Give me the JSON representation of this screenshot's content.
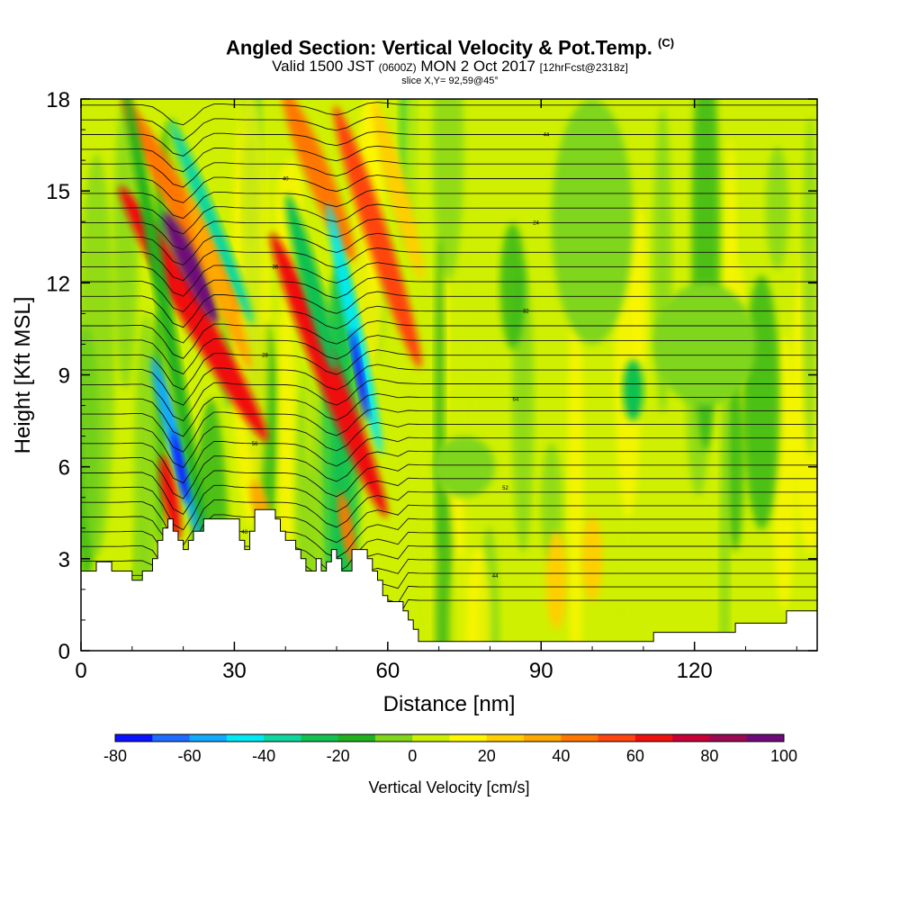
{
  "header": {
    "title_main": "Angled Section: Vertical Velocity & Pot.Temp.",
    "title_unit": "(C)",
    "valid_a": "Valid 1500 JST",
    "valid_b": "(0600Z)",
    "valid_c": "MON 2 Oct 2017",
    "valid_d": "[12hrFcst@2318z]",
    "slice": "slice X,Y= 92,59@45°"
  },
  "chart_data": {
    "type": "heatmap",
    "xlabel": "Distance [nm]",
    "ylabel": "Height [Kft MSL]",
    "xlim": [
      0,
      144
    ],
    "ylim": [
      0,
      18
    ],
    "xticks": [
      0,
      30,
      60,
      90,
      120
    ],
    "yticks": [
      0,
      3,
      6,
      9,
      12,
      15,
      18
    ],
    "colorbar": {
      "title": "Vertical Velocity [cm/s]",
      "bounds": [
        -80,
        -70,
        -60,
        -50,
        -40,
        -30,
        -20,
        -10,
        0,
        10,
        20,
        30,
        40,
        50,
        60,
        70,
        80,
        90,
        100
      ],
      "labels": [
        -80,
        -60,
        -40,
        -20,
        0,
        20,
        40,
        60,
        80,
        100
      ],
      "colors": [
        "#0a12ff",
        "#1f6cff",
        "#11aaff",
        "#00eaf5",
        "#10d7a0",
        "#11c151",
        "#20b11e",
        "#7fd61a",
        "#cff000",
        "#fff600",
        "#ffcf00",
        "#ffa800",
        "#ff7700",
        "#ff4510",
        "#f01010",
        "#c80035",
        "#9c0a55",
        "#6f0a7a"
      ]
    },
    "terrain": [
      [
        0,
        2.6
      ],
      [
        3,
        2.6
      ],
      [
        3,
        2.9
      ],
      [
        6,
        2.9
      ],
      [
        6,
        2.6
      ],
      [
        10,
        2.6
      ],
      [
        10,
        2.3
      ],
      [
        12,
        2.3
      ],
      [
        12,
        2.6
      ],
      [
        14,
        2.6
      ],
      [
        14,
        3.0
      ],
      [
        15,
        3.0
      ],
      [
        15,
        3.6
      ],
      [
        16,
        3.6
      ],
      [
        16,
        4.0
      ],
      [
        17,
        4.0
      ],
      [
        17,
        4.3
      ],
      [
        18,
        4.3
      ],
      [
        18,
        3.9
      ],
      [
        19,
        3.9
      ],
      [
        19,
        3.6
      ],
      [
        20,
        3.6
      ],
      [
        20,
        3.3
      ],
      [
        21,
        3.3
      ],
      [
        21,
        3.6
      ],
      [
        22,
        3.6
      ],
      [
        22,
        3.9
      ],
      [
        24,
        3.9
      ],
      [
        24,
        4.3
      ],
      [
        31,
        4.3
      ],
      [
        31,
        3.6
      ],
      [
        32,
        3.6
      ],
      [
        32,
        3.3
      ],
      [
        33,
        3.3
      ],
      [
        33,
        3.9
      ],
      [
        34,
        3.9
      ],
      [
        34,
        4.6
      ],
      [
        38,
        4.6
      ],
      [
        38,
        4.3
      ],
      [
        39,
        4.3
      ],
      [
        39,
        3.9
      ],
      [
        40,
        3.9
      ],
      [
        40,
        3.6
      ],
      [
        42,
        3.6
      ],
      [
        42,
        3.3
      ],
      [
        43,
        3.3
      ],
      [
        43,
        3.0
      ],
      [
        44,
        3.0
      ],
      [
        44,
        2.6
      ],
      [
        46,
        2.6
      ],
      [
        46,
        3.0
      ],
      [
        47,
        3.0
      ],
      [
        47,
        2.6
      ],
      [
        48,
        2.6
      ],
      [
        48,
        2.9
      ],
      [
        49,
        2.9
      ],
      [
        49,
        3.3
      ],
      [
        50,
        3.3
      ],
      [
        50,
        3.0
      ],
      [
        51,
        3.0
      ],
      [
        51,
        2.6
      ],
      [
        53,
        2.6
      ],
      [
        53,
        3.3
      ],
      [
        56,
        3.3
      ],
      [
        56,
        3.0
      ],
      [
        57,
        3.0
      ],
      [
        57,
        2.6
      ],
      [
        58,
        2.6
      ],
      [
        58,
        2.3
      ],
      [
        59,
        2.3
      ],
      [
        59,
        1.8
      ],
      [
        60,
        1.8
      ],
      [
        60,
        1.6
      ],
      [
        63,
        1.6
      ],
      [
        63,
        1.3
      ],
      [
        64,
        1.3
      ],
      [
        64,
        1.0
      ],
      [
        65,
        1.0
      ],
      [
        65,
        0.7
      ],
      [
        66,
        0.7
      ],
      [
        66,
        0.3
      ],
      [
        112,
        0.3
      ],
      [
        112,
        0.6
      ],
      [
        128,
        0.6
      ],
      [
        128,
        0.9
      ],
      [
        138,
        0.9
      ],
      [
        138,
        1.3
      ],
      [
        144,
        1.3
      ]
    ],
    "cells": [
      {
        "x": 22,
        "y": 11.0,
        "w": 2.6,
        "h": 4.8,
        "r": 30,
        "v": 60
      },
      {
        "x": 19.5,
        "y": 14.5,
        "w": 2.4,
        "h": 4.0,
        "r": 28,
        "v": 45
      },
      {
        "x": 21.5,
        "y": 12.5,
        "w": 2.0,
        "h": 2.0,
        "r": 25,
        "v": 100
      },
      {
        "x": 17.5,
        "y": 5.0,
        "w": 1.5,
        "h": 1.4,
        "r": 10,
        "v": 60
      },
      {
        "x": 19.0,
        "y": 6.5,
        "w": 1.6,
        "h": 3.2,
        "r": 15,
        "v": -60
      },
      {
        "x": 19.5,
        "y": 6.0,
        "w": 0.9,
        "h": 1.2,
        "r": 12,
        "v": -80
      },
      {
        "x": 16.5,
        "y": 11.0,
        "w": 1.4,
        "h": 8.0,
        "r": 10,
        "v": -20
      },
      {
        "x": 25.5,
        "y": 14.0,
        "w": 1.5,
        "h": 3.6,
        "r": 22,
        "v": -40
      },
      {
        "x": 27.0,
        "y": 12.0,
        "w": 1.8,
        "h": 3.0,
        "r": 20,
        "v": 30
      },
      {
        "x": 35.0,
        "y": 4.8,
        "w": 1.5,
        "h": 0.8,
        "r": 15,
        "v": 30
      },
      {
        "x": 48.5,
        "y": 9.0,
        "w": 2.4,
        "h": 5.0,
        "r": 22,
        "v": 60
      },
      {
        "x": 46.5,
        "y": 15.5,
        "w": 2.4,
        "h": 3.0,
        "r": 22,
        "v": 40
      },
      {
        "x": 45.0,
        "y": 12.0,
        "w": 1.8,
        "h": 3.0,
        "r": 15,
        "v": -30
      },
      {
        "x": 53.5,
        "y": 10.5,
        "w": 1.4,
        "h": 4.2,
        "r": 12,
        "v": -50
      },
      {
        "x": 54.5,
        "y": 9.0,
        "w": 0.8,
        "h": 1.5,
        "r": 10,
        "v": -80
      },
      {
        "x": 58.0,
        "y": 13.5,
        "w": 2.2,
        "h": 4.5,
        "r": 18,
        "v": 50
      },
      {
        "x": 62.0,
        "y": 15.0,
        "w": 1.8,
        "h": 3.0,
        "r": 15,
        "v": 20
      },
      {
        "x": 52.0,
        "y": 4.0,
        "w": 1.2,
        "h": 1.2,
        "r": 10,
        "v": 40
      },
      {
        "x": 100,
        "y": 14,
        "w": 8,
        "h": 4,
        "r": 0,
        "v": -10
      },
      {
        "x": 122,
        "y": 10,
        "w": 10,
        "h": 2,
        "r": 0,
        "v": -10
      },
      {
        "x": 108,
        "y": 8.5,
        "w": 2,
        "h": 1,
        "r": 0,
        "v": -30
      },
      {
        "x": 93,
        "y": 2.3,
        "w": 2,
        "h": 1.6,
        "r": 0,
        "v": 25
      },
      {
        "x": 100,
        "y": 3.0,
        "w": 2,
        "h": 1.4,
        "r": 0,
        "v": 20
      },
      {
        "x": 75,
        "y": 6.0,
        "w": 6,
        "h": 1.0,
        "r": 0,
        "v": -10
      }
    ],
    "contour_labels": [
      "40",
      "44",
      "48",
      "52",
      "56",
      "64",
      "28",
      "32",
      "36",
      "24"
    ]
  }
}
